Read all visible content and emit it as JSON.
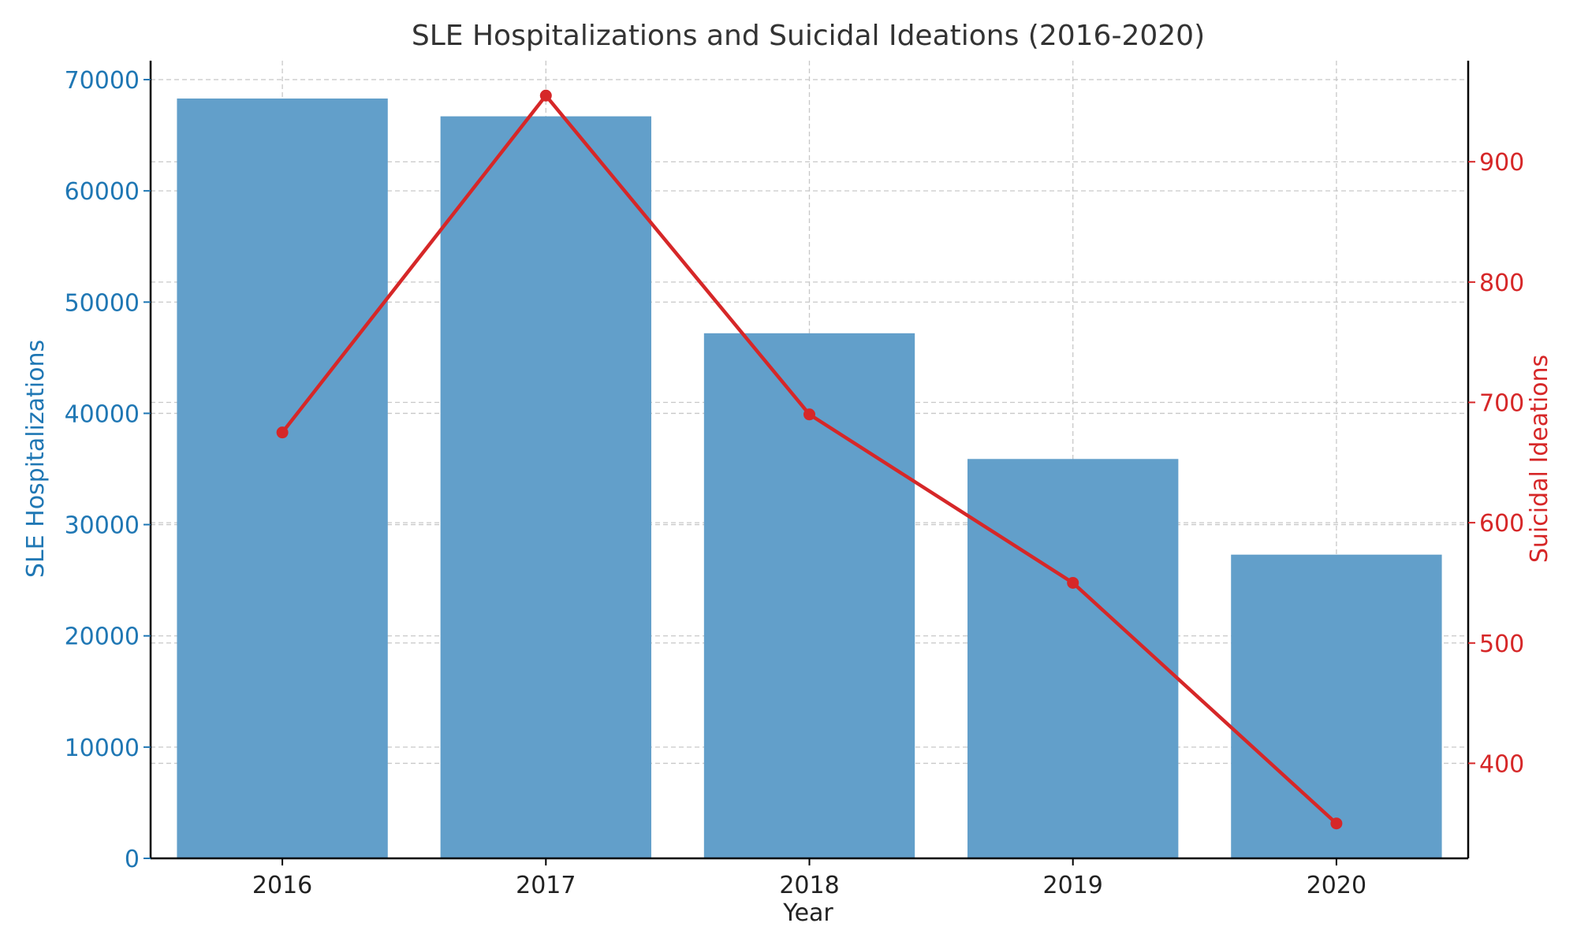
{
  "chart_data": {
    "type": "bar",
    "title": "SLE Hospitalizations and Suicidal Ideations (2016-2020)",
    "xlabel": "Year",
    "ylabel": "SLE Hospitalizations",
    "y2label": "Suicidal Ideations",
    "categories": [
      "2016",
      "2017",
      "2018",
      "2019",
      "2020"
    ],
    "ylim": [
      0,
      71700
    ],
    "y2lim": [
      321,
      984
    ],
    "yticks": [
      0,
      10000,
      20000,
      30000,
      40000,
      50000,
      60000,
      70000
    ],
    "y2ticks": [
      400,
      500,
      600,
      700,
      800,
      900
    ],
    "grid": true,
    "legend": "none",
    "series": [
      {
        "name": "SLE Hospitalizations",
        "type": "bar",
        "axis": "left",
        "color": "#629fca",
        "values": [
          68300,
          66700,
          47200,
          35900,
          27300
        ]
      },
      {
        "name": "Suicidal Ideations",
        "type": "line",
        "axis": "right",
        "color": "#d62728",
        "values": [
          675,
          955,
          690,
          550,
          350
        ]
      }
    ],
    "colors": {
      "left_axis": "#1f77b4",
      "right_axis": "#d62728",
      "text": "#333333"
    }
  }
}
